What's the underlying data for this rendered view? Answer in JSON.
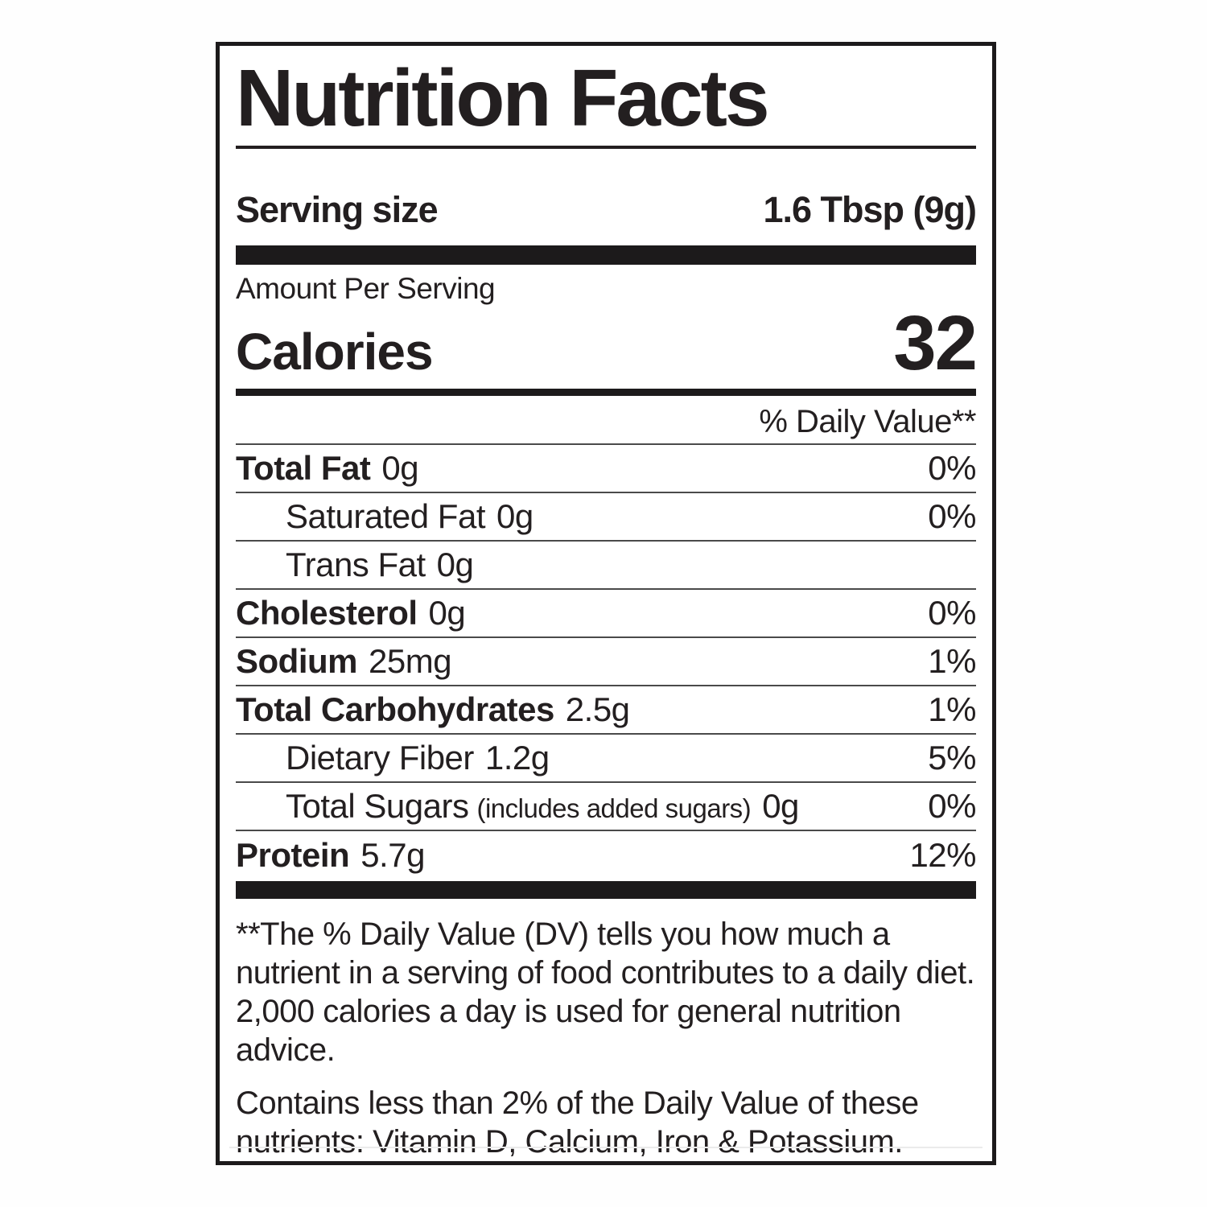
{
  "label": {
    "title": "Nutrition Facts",
    "serving": {
      "label": "Serving size",
      "value": "1.6 Tbsp (9g)"
    },
    "amount_per_serving": "Amount Per Serving",
    "calories": {
      "label": "Calories",
      "value": "32"
    },
    "daily_value_header": "% Daily Value**",
    "rows": [
      {
        "name": "Total Fat",
        "paren": "",
        "amount": "0g",
        "dv": "0%"
      },
      {
        "name": "Saturated Fat",
        "paren": "",
        "amount": "0g",
        "dv": "0%"
      },
      {
        "name": "Trans Fat",
        "paren": "",
        "amount": "0g",
        "dv": ""
      },
      {
        "name": "Cholesterol",
        "paren": "",
        "amount": "0g",
        "dv": "0%"
      },
      {
        "name": "Sodium",
        "paren": "",
        "amount": "25mg",
        "dv": "1%"
      },
      {
        "name": "Total Carbohydrates",
        "paren": "",
        "amount": "2.5g",
        "dv": "1%"
      },
      {
        "name": "Dietary Fiber",
        "paren": "",
        "amount": "1.2g",
        "dv": "5%"
      },
      {
        "name": "Total Sugars",
        "paren": "(includes added sugars)",
        "amount": "0g",
        "dv": "0%"
      },
      {
        "name": "Protein",
        "paren": "",
        "amount": "5.7g",
        "dv": "12%"
      }
    ],
    "footnotes": [
      "**The % Daily Value (DV) tells you how much a nutrient in a serving of food contributes to a daily diet. 2,000 calories a day is used for general nutrition advice.",
      "Contains less than 2% of the Daily Value of these nutrients: Vitamin D, Calcium, Iron & Potassium."
    ],
    "colors": {
      "ink": "#231f20",
      "bar": "#1c1a1b",
      "divider": "#4a4a4a"
    }
  }
}
